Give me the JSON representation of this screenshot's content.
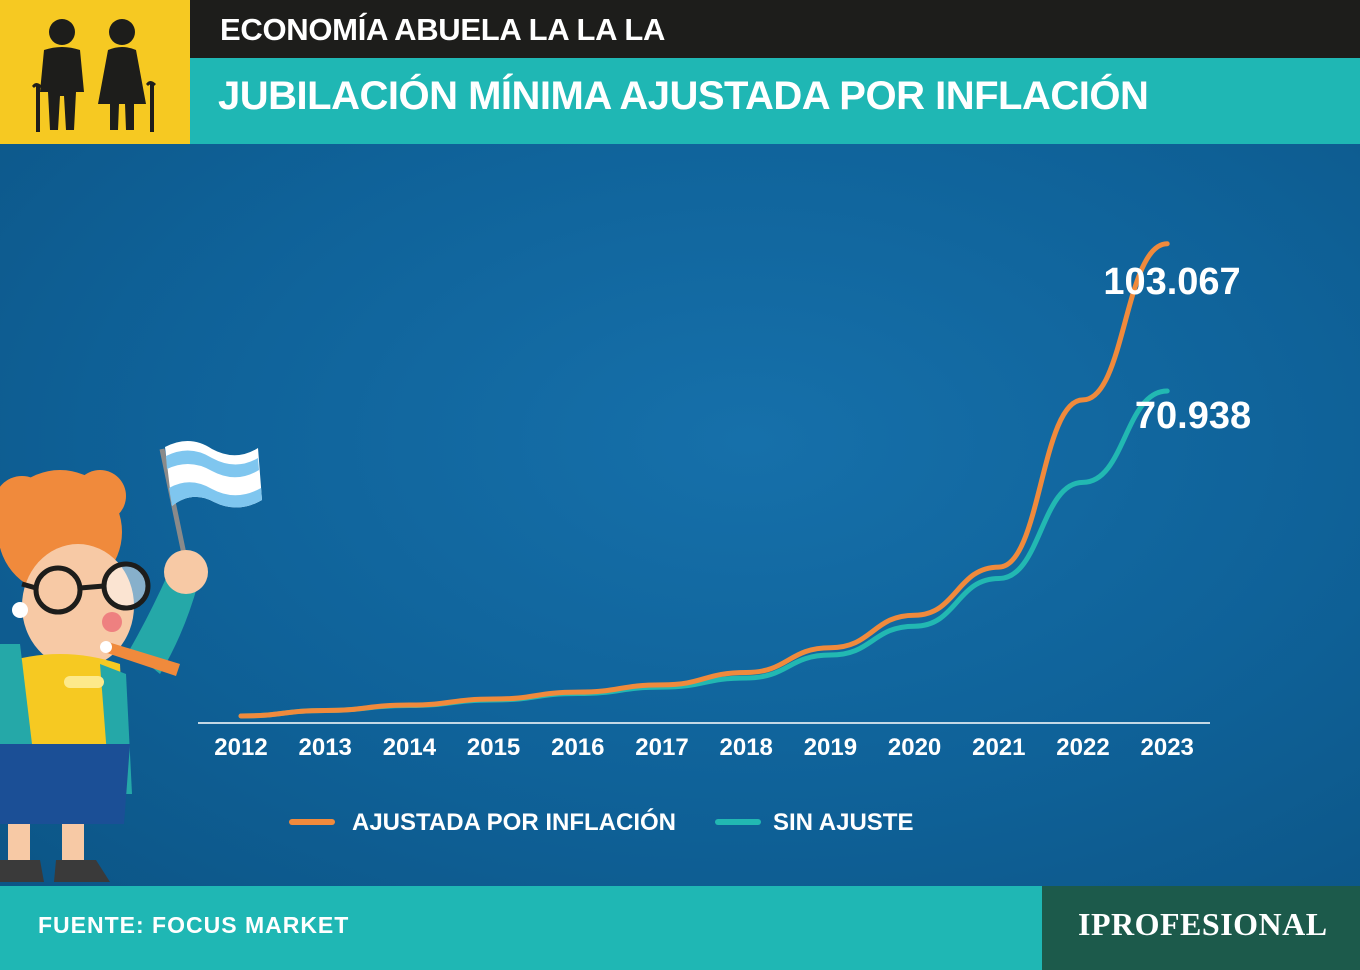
{
  "header": {
    "supertitle": "ECONOMÍA ABUELA LA LA LA",
    "title": "JUBILACIÓN MÍNIMA AJUSTADA POR INFLACIÓN",
    "icon": "elderly-couple-icon"
  },
  "footer": {
    "source": "FUENTE: FOCUS MARKET",
    "brand": "IPROFESIONAL"
  },
  "colors": {
    "background": "#0e5f97",
    "accent_teal": "#1fb7b4",
    "accent_yellow": "#f6c922",
    "series_adjusted": "#f08a3c",
    "series_unadjusted": "#22b8b2",
    "brand_bg": "#1c5a4b"
  },
  "illustration": "grandmother-with-argentine-flag-icon",
  "chart_data": {
    "type": "line",
    "title": "JUBILACIÓN MÍNIMA AJUSTADA POR INFLACIÓN",
    "xlabel": "",
    "ylabel": "",
    "categories": [
      "2012",
      "2013",
      "2014",
      "2015",
      "2016",
      "2017",
      "2018",
      "2019",
      "2020",
      "2021",
      "2022",
      "2023"
    ],
    "ylim": [
      0,
      110000
    ],
    "grid": false,
    "legend_position": "bottom",
    "series": [
      {
        "name": "AJUSTADA POR INFLACIÓN",
        "color": "#f08a3c",
        "values": [
          0,
          1200,
          2400,
          3700,
          5200,
          6800,
          9500,
          14900,
          22000,
          32500,
          69000,
          103067
        ],
        "end_label": "103.067"
      },
      {
        "name": "SIN AJUSTE",
        "color": "#22b8b2",
        "values": [
          0,
          1200,
          2300,
          3500,
          4900,
          6300,
          8300,
          13300,
          19600,
          30000,
          51000,
          70938
        ],
        "end_label": "70.938"
      }
    ]
  }
}
